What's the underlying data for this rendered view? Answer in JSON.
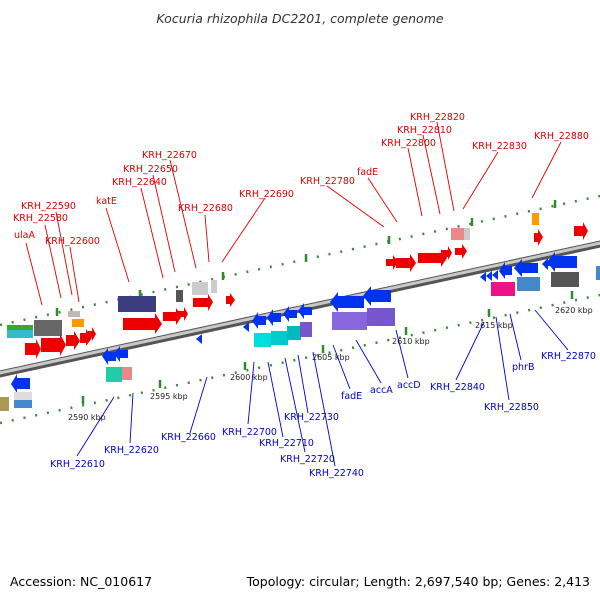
{
  "title": "Kocuria rhizophila DC2201, complete genome",
  "footer": {
    "accession": "Accession: NC_010617",
    "topology": "Topology: circular; Length: 2,697,540 bp; Genes: 2,413"
  },
  "colors": {
    "forward_label": "#dd0000",
    "reverse_label": "#0000cc",
    "axis": "#888888",
    "tick": "#2e8b2e"
  },
  "scale_labels": [
    "2590 kbp",
    "2595 kbp",
    "2600 kbp",
    "2605 kbp",
    "2610 kbp",
    "2615 kbp",
    "2620 kbp"
  ],
  "forward_genes": [
    "ulaA",
    "KRH_22580",
    "KRH_22590",
    "KRH_22600",
    "katE",
    "KRH_22640",
    "KRH_22650",
    "KRH_22670",
    "KRH_22680",
    "KRH_22690",
    "KRH_22780",
    "fadE",
    "KRH_22800",
    "KRH_22810",
    "KRH_22820",
    "KRH_22830",
    "KRH_22880"
  ],
  "reverse_genes": [
    "KRH_22610",
    "KRH_22620",
    "KRH_22660",
    "KRH_22700",
    "KRH_22710",
    "KRH_22720",
    "KRH_22730",
    "KRH_22740",
    "fadE",
    "accA",
    "accD",
    "KRH_22840",
    "KRH_22850",
    "phrB",
    "KRH_22870"
  ]
}
